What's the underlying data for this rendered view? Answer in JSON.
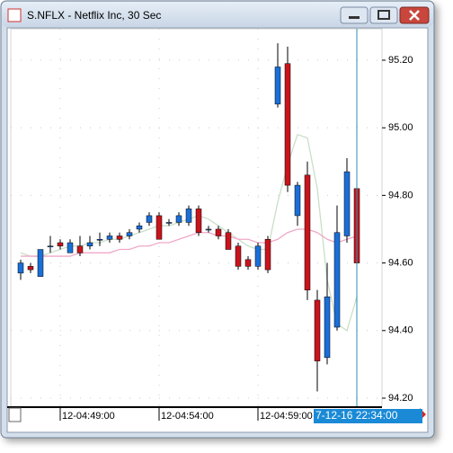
{
  "window": {
    "title": "S.NFLX - Netflix Inc, 30 Sec"
  },
  "chart_data": {
    "type": "candlestick",
    "categories": [
      null,
      null,
      null,
      null,
      "12-04:49:00",
      null,
      null,
      null,
      null,
      null,
      null,
      null,
      null,
      null,
      "12-04:54:00",
      null,
      null,
      null,
      null,
      null,
      null,
      null,
      null,
      null,
      "12-04:59:00",
      null,
      null,
      null,
      null,
      null,
      null,
      null,
      null,
      null,
      null
    ],
    "open": [
      94.57,
      94.59,
      94.56,
      94.65,
      94.66,
      94.63,
      94.65,
      94.65,
      94.67,
      94.67,
      94.68,
      94.68,
      94.7,
      94.72,
      94.74,
      94.72,
      94.72,
      94.72,
      94.76,
      94.7,
      94.7,
      94.69,
      94.65,
      94.61,
      94.59,
      94.67,
      95.07,
      95.19,
      94.74,
      94.86,
      94.49,
      94.32,
      94.41,
      94.68,
      94.82
    ],
    "high": [
      94.61,
      94.6,
      94.64,
      94.68,
      94.67,
      94.67,
      94.68,
      94.68,
      94.69,
      94.69,
      94.69,
      94.7,
      94.72,
      94.75,
      94.75,
      94.73,
      94.75,
      94.77,
      94.77,
      94.71,
      94.71,
      94.7,
      94.66,
      94.62,
      94.66,
      94.68,
      95.25,
      95.24,
      94.84,
      94.9,
      94.52,
      94.6,
      94.77,
      94.91,
      94.93
    ],
    "low": [
      94.55,
      94.57,
      94.56,
      94.63,
      94.64,
      94.63,
      94.62,
      94.64,
      94.65,
      94.66,
      94.66,
      94.67,
      94.69,
      94.71,
      94.67,
      94.71,
      94.71,
      94.71,
      94.68,
      94.69,
      94.67,
      94.64,
      94.58,
      94.58,
      94.58,
      94.57,
      95.06,
      94.81,
      94.71,
      94.49,
      94.22,
      94.3,
      94.4,
      94.66,
      94.45
    ],
    "close": [
      94.6,
      94.58,
      94.64,
      94.65,
      94.65,
      94.66,
      94.63,
      94.66,
      94.67,
      94.68,
      94.67,
      94.69,
      94.71,
      94.74,
      94.67,
      94.72,
      94.74,
      94.76,
      94.69,
      94.7,
      94.68,
      94.64,
      94.59,
      94.59,
      94.65,
      94.58,
      95.18,
      94.83,
      94.83,
      94.52,
      94.31,
      94.5,
      94.69,
      94.87,
      94.6
    ],
    "up_color": "#1a6fd8",
    "down_color": "#c8141c",
    "series": [
      {
        "color": "#c9dfc9",
        "values": [
          94.63,
          94.62,
          94.62,
          94.63,
          94.64,
          94.65,
          94.65,
          94.66,
          94.66,
          94.67,
          94.67,
          94.68,
          94.69,
          94.7,
          94.71,
          94.71,
          94.72,
          94.73,
          94.74,
          94.73,
          94.71,
          94.69,
          94.67,
          94.65,
          94.64,
          94.64,
          94.78,
          94.89,
          94.98,
          94.97,
          94.82,
          94.55,
          94.42,
          94.4,
          94.5
        ]
      },
      {
        "color": "#f0a8c8",
        "values": [
          94.62,
          94.62,
          94.62,
          94.62,
          94.62,
          94.62,
          94.63,
          94.63,
          94.63,
          94.63,
          94.64,
          94.64,
          94.65,
          94.65,
          94.66,
          94.66,
          94.67,
          94.68,
          94.69,
          94.69,
          94.68,
          94.68,
          94.67,
          94.67,
          94.66,
          94.66,
          94.67,
          94.69,
          94.7,
          94.7,
          94.69,
          94.67,
          94.66,
          94.67,
          94.68
        ]
      }
    ],
    "ylim": [
      94.176,
      95.293
    ],
    "yticks": [
      {
        "value": 94.2,
        "label": "94.20"
      },
      {
        "value": 94.4,
        "label": "94.40"
      },
      {
        "value": 94.6,
        "label": "94.60"
      },
      {
        "value": 94.8,
        "label": "94.80"
      },
      {
        "value": 95.0,
        "label": "95.00"
      },
      {
        "value": 95.2,
        "label": "95.20"
      }
    ],
    "grid": true,
    "cursor_label": "7-12-16 22:34:00"
  }
}
